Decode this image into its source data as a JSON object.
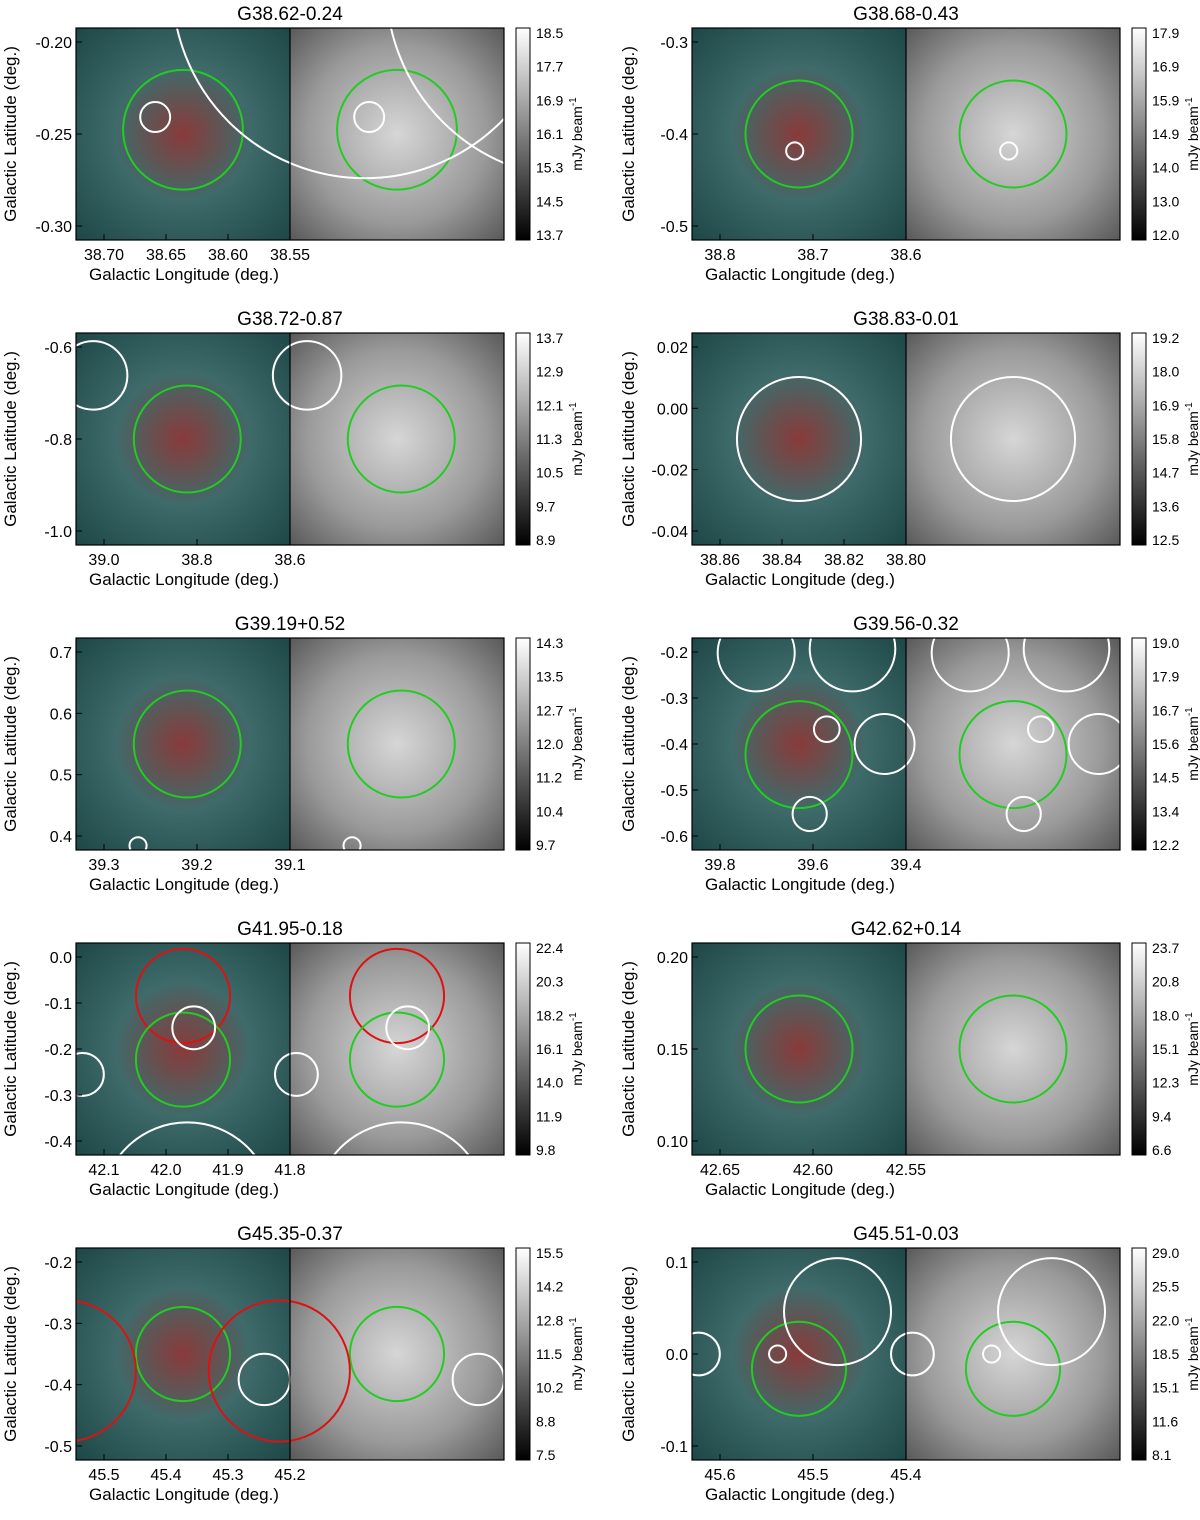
{
  "figure": {
    "colorbar_unit": "mJy beam",
    "colorbar_unit_exp": "-1",
    "panels": [
      {
        "title": "G38.62-0.24",
        "ylabel": "Galactic Latitude (deg.)",
        "xlabel": "Galactic Longitude (deg.)",
        "yticks": [
          "-0.20",
          "-0.25",
          "-0.30"
        ],
        "xticks": [
          "38.70",
          "38.65",
          "38.60",
          "38.55"
        ],
        "cbar": [
          "18.5",
          "17.7",
          "16.9",
          "16.1",
          "15.3",
          "14.5",
          "13.7"
        ],
        "circles": [
          {
            "color": "green",
            "cx": 0.5,
            "cy": 0.48,
            "r": 0.28
          },
          {
            "color": "white",
            "cx": 0.37,
            "cy": 0.42,
            "r": 0.07
          },
          {
            "color": "white",
            "cx": 1.35,
            "cy": -0.2,
            "r": 0.9
          }
        ]
      },
      {
        "title": "G38.68-0.43",
        "ylabel": "Galactic Latitude (deg.)",
        "xlabel": "Galactic Longitude (deg.)",
        "yticks": [
          "-0.3",
          "-0.4",
          "-0.5"
        ],
        "xticks": [
          "38.8",
          "38.7",
          "38.6"
        ],
        "cbar": [
          "17.9",
          "16.9",
          "15.9",
          "14.9",
          "14.0",
          "13.0",
          "12.0"
        ],
        "circles": [
          {
            "color": "green",
            "cx": 0.5,
            "cy": 0.5,
            "r": 0.25
          },
          {
            "color": "white",
            "cx": 0.48,
            "cy": 0.58,
            "r": 0.04
          }
        ]
      },
      {
        "title": "G38.72-0.87",
        "ylabel": "Galactic Latitude (deg.)",
        "xlabel": "Galactic Longitude (deg.)",
        "yticks": [
          "-0.6",
          "-0.8",
          "-1.0"
        ],
        "xticks": [
          "39.0",
          "38.8",
          "38.6"
        ],
        "cbar": [
          "13.7",
          "12.9",
          "12.1",
          "11.3",
          "10.5",
          "9.7",
          "8.9"
        ],
        "circles": [
          {
            "color": "green",
            "cx": 0.52,
            "cy": 0.5,
            "r": 0.25
          },
          {
            "color": "white",
            "cx": 0.08,
            "cy": 0.2,
            "r": 0.16
          }
        ]
      },
      {
        "title": "G38.83-0.01",
        "ylabel": "Galactic Latitude (deg.)",
        "xlabel": "Galactic Longitude (deg.)",
        "yticks": [
          "0.02",
          "0.00",
          "-0.02",
          "-0.04"
        ],
        "xticks": [
          "38.86",
          "38.84",
          "38.82",
          "38.80"
        ],
        "cbar": [
          "19.2",
          "18.0",
          "16.9",
          "15.8",
          "14.7",
          "13.6",
          "12.5"
        ],
        "circles": [
          {
            "color": "white",
            "cx": 0.5,
            "cy": 0.5,
            "r": 0.29
          }
        ]
      },
      {
        "title": "G39.19+0.52",
        "ylabel": "Galactic Latitude (deg.)",
        "xlabel": "Galactic Longitude (deg.)",
        "yticks": [
          "0.7",
          "0.6",
          "0.5",
          "0.4"
        ],
        "xticks": [
          "39.3",
          "39.2",
          "39.1"
        ],
        "cbar": [
          "14.3",
          "13.5",
          "12.7",
          "12.0",
          "11.2",
          "10.4",
          "9.7"
        ],
        "circles": [
          {
            "color": "green",
            "cx": 0.52,
            "cy": 0.5,
            "r": 0.25
          },
          {
            "color": "white",
            "cx": 0.29,
            "cy": 0.98,
            "r": 0.04
          }
        ]
      },
      {
        "title": "G39.56-0.32",
        "ylabel": "Galactic Latitude (deg.)",
        "xlabel": "Galactic Longitude (deg.)",
        "yticks": [
          "-0.2",
          "-0.3",
          "-0.4",
          "-0.5",
          "-0.6"
        ],
        "xticks": [
          "39.8",
          "39.6",
          "39.4"
        ],
        "cbar": [
          "19.0",
          "17.9",
          "16.7",
          "15.6",
          "14.5",
          "13.4",
          "12.2"
        ],
        "circles": [
          {
            "color": "green",
            "cx": 0.5,
            "cy": 0.55,
            "r": 0.25
          },
          {
            "color": "white",
            "cx": 0.3,
            "cy": 0.07,
            "r": 0.18
          },
          {
            "color": "white",
            "cx": 0.75,
            "cy": 0.05,
            "r": 0.2
          },
          {
            "color": "white",
            "cx": 0.63,
            "cy": 0.43,
            "r": 0.06
          },
          {
            "color": "white",
            "cx": 0.9,
            "cy": 0.5,
            "r": 0.14
          },
          {
            "color": "white",
            "cx": 0.55,
            "cy": 0.83,
            "r": 0.08
          }
        ]
      },
      {
        "title": "G41.95-0.18",
        "ylabel": "Galactic Latitude (deg.)",
        "xlabel": "Galactic Longitude (deg.)",
        "yticks": [
          "0.0",
          "-0.1",
          "-0.2",
          "-0.3",
          "-0.4"
        ],
        "xticks": [
          "42.1",
          "42.0",
          "41.9",
          "41.8"
        ],
        "cbar": [
          "22.4",
          "20.3",
          "18.2",
          "16.1",
          "14.0",
          "11.9",
          "9.8"
        ],
        "circles": [
          {
            "color": "red",
            "cx": 0.5,
            "cy": 0.25,
            "r": 0.22
          },
          {
            "color": "green",
            "cx": 0.5,
            "cy": 0.55,
            "r": 0.22
          },
          {
            "color": "white",
            "cx": 0.52,
            "cy": 1.25,
            "r": 0.4
          },
          {
            "color": "white",
            "cx": 0.55,
            "cy": 0.4,
            "r": 0.1
          },
          {
            "color": "white",
            "cx": 0.03,
            "cy": 0.62,
            "r": 0.1
          }
        ]
      },
      {
        "title": "G42.62+0.14",
        "ylabel": "Galactic Latitude (deg.)",
        "xlabel": "Galactic Longitude (deg.)",
        "yticks": [
          "0.20",
          "0.15",
          "0.10"
        ],
        "xticks": [
          "42.65",
          "42.60",
          "42.55"
        ],
        "cbar": [
          "23.7",
          "20.8",
          "18.0",
          "15.1",
          "12.3",
          "9.4",
          "6.6"
        ],
        "circles": [
          {
            "color": "green",
            "cx": 0.5,
            "cy": 0.5,
            "r": 0.25
          }
        ]
      },
      {
        "title": "G45.35-0.37",
        "ylabel": "Galactic Latitude (deg.)",
        "xlabel": "Galactic Longitude (deg.)",
        "yticks": [
          "-0.2",
          "-0.3",
          "-0.4",
          "-0.5"
        ],
        "xticks": [
          "45.5",
          "45.4",
          "45.3",
          "45.2"
        ],
        "cbar": [
          "15.5",
          "14.2",
          "12.8",
          "11.5",
          "10.2",
          "8.8",
          "7.5"
        ],
        "circles": [
          {
            "color": "green",
            "cx": 0.5,
            "cy": 0.5,
            "r": 0.22
          },
          {
            "color": "red",
            "cx": -0.05,
            "cy": 0.58,
            "r": 0.33
          },
          {
            "color": "white",
            "cx": 0.88,
            "cy": 0.62,
            "r": 0.12
          }
        ]
      },
      {
        "title": "G45.51-0.03",
        "ylabel": "Galactic Latitude (deg.)",
        "xlabel": "Galactic Longitude (deg.)",
        "yticks": [
          "0.1",
          "0.0",
          "-0.1"
        ],
        "xticks": [
          "45.6",
          "45.5",
          "45.4"
        ],
        "cbar": [
          "29.0",
          "25.5",
          "22.0",
          "18.5",
          "15.1",
          "11.6",
          "8.1"
        ],
        "circles": [
          {
            "color": "green",
            "cx": 0.5,
            "cy": 0.57,
            "r": 0.22
          },
          {
            "color": "white",
            "cx": 0.68,
            "cy": 0.3,
            "r": 0.25
          },
          {
            "color": "white",
            "cx": 0.4,
            "cy": 0.5,
            "r": 0.04
          },
          {
            "color": "white",
            "cx": 0.03,
            "cy": 0.5,
            "r": 0.1
          }
        ]
      }
    ]
  }
}
